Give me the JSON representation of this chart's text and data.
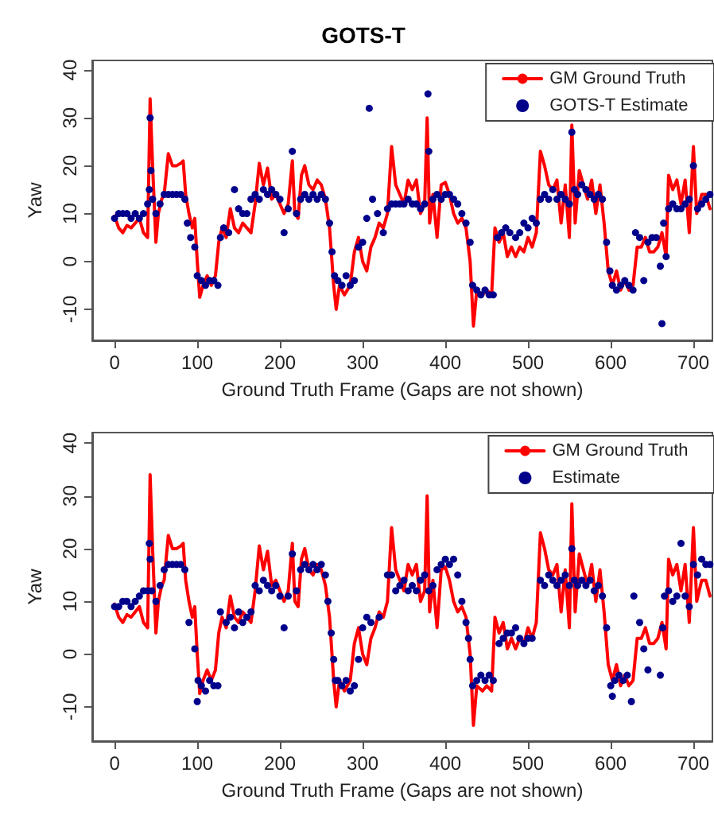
{
  "chart_data": [
    {
      "type": "line",
      "title": "GOTS-T",
      "xlabel": "Ground Truth Frame (Gaps are not shown)",
      "ylabel": "Yaw",
      "xlim": [
        -27,
        723
      ],
      "ylim": [
        -16.5,
        42
      ],
      "xticks": [
        0,
        100,
        200,
        300,
        400,
        500,
        600,
        700
      ],
      "yticks": [
        -10,
        0,
        10,
        20,
        30,
        40
      ],
      "grid": false,
      "legend": "top right",
      "series": [
        {
          "name": "GM Ground Truth",
          "color": "#ff0000",
          "type": "line",
          "marker": "none",
          "line_style": "solid",
          "x": [
            0,
            5,
            10,
            15,
            20,
            25,
            30,
            35,
            40,
            43,
            46,
            50,
            53,
            57,
            60,
            65,
            70,
            75,
            80,
            83,
            86,
            90,
            94,
            97,
            100,
            103,
            107,
            112,
            117,
            122,
            126,
            130,
            135,
            140,
            145,
            150,
            155,
            160,
            165,
            170,
            175,
            180,
            185,
            190,
            195,
            200,
            205,
            210,
            215,
            218,
            222,
            226,
            230,
            235,
            240,
            245,
            250,
            255,
            260,
            265,
            268,
            272,
            278,
            285,
            290,
            295,
            300,
            305,
            310,
            315,
            320,
            325,
            330,
            335,
            340,
            345,
            350,
            355,
            360,
            365,
            370,
            375,
            378,
            381,
            385,
            390,
            395,
            400,
            405,
            410,
            415,
            420,
            425,
            430,
            434,
            438,
            445,
            450,
            456,
            460,
            465,
            470,
            475,
            480,
            485,
            490,
            495,
            500,
            505,
            510,
            515,
            520,
            525,
            530,
            535,
            540,
            545,
            550,
            553,
            557,
            562,
            567,
            572,
            577,
            582,
            587,
            592,
            597,
            602,
            607,
            612,
            617,
            622,
            627,
            632,
            637,
            642,
            647,
            652,
            657,
            662,
            667,
            670,
            675,
            680,
            685,
            690,
            695,
            700,
            704,
            710,
            715,
            720
          ],
          "values": [
            9.5,
            7,
            6,
            7.5,
            7,
            8,
            9,
            6,
            5,
            34,
            20,
            4,
            10,
            13,
            14,
            22.5,
            20,
            20,
            20.5,
            21,
            14,
            10,
            7,
            9,
            0,
            -7.5,
            -5,
            -3,
            -5,
            -3,
            4,
            7,
            5,
            11,
            7,
            6,
            8,
            7,
            6,
            12,
            20.5,
            16,
            19.5,
            13,
            14,
            12,
            10,
            12,
            21,
            10,
            9,
            18,
            20,
            16,
            15,
            17,
            16,
            13,
            7,
            -5,
            -10,
            -5,
            -7,
            -5,
            2,
            5,
            0,
            -2,
            3,
            5,
            8,
            7,
            10,
            24,
            16,
            14,
            12,
            17,
            15,
            17,
            10,
            12,
            30,
            8,
            14,
            5,
            16,
            16.5,
            14,
            10,
            8,
            9,
            7,
            0,
            -13.5,
            -6,
            -7,
            -6,
            -7,
            7,
            4,
            6,
            1,
            3,
            1,
            3,
            2,
            5,
            3,
            6,
            23,
            20,
            16,
            15,
            17,
            8,
            16,
            5,
            28.5,
            8,
            19,
            16,
            13,
            17,
            10,
            16,
            8,
            -2,
            -5,
            -2,
            -6,
            -4,
            -6,
            -5,
            3,
            3,
            5,
            2,
            2,
            3,
            6,
            1,
            18,
            15,
            17,
            12,
            17,
            6,
            24,
            10,
            14,
            14,
            11
          ]
        },
        {
          "name": "GOTS-T Estimate",
          "color": "#00008b",
          "type": "scatter",
          "marker": "circle",
          "x": [
            0,
            5,
            10,
            15,
            20,
            25,
            30,
            35,
            40,
            42,
            43,
            44,
            46,
            50,
            55,
            60,
            65,
            70,
            75,
            80,
            85,
            88,
            92,
            97,
            100,
            105,
            110,
            115,
            120,
            125,
            128,
            132,
            138,
            145,
            150,
            155,
            160,
            165,
            170,
            175,
            180,
            185,
            190,
            195,
            200,
            205,
            210,
            215,
            220,
            225,
            230,
            235,
            240,
            245,
            250,
            255,
            260,
            263,
            266,
            270,
            275,
            280,
            285,
            290,
            295,
            300,
            305,
            308,
            312,
            318,
            325,
            330,
            335,
            340,
            345,
            350,
            355,
            360,
            365,
            370,
            375,
            379,
            380,
            385,
            390,
            395,
            400,
            405,
            410,
            415,
            420,
            425,
            430,
            433,
            438,
            443,
            448,
            453,
            458,
            463,
            468,
            473,
            478,
            485,
            490,
            495,
            500,
            505,
            510,
            515,
            520,
            525,
            530,
            535,
            540,
            545,
            550,
            553,
            556,
            560,
            565,
            570,
            575,
            580,
            585,
            590,
            595,
            599,
            602,
            607,
            612,
            617,
            622,
            627,
            630,
            635,
            640,
            645,
            650,
            655,
            660,
            662,
            664,
            667,
            670,
            675,
            680,
            685,
            690,
            695,
            700,
            705,
            710,
            715,
            720
          ],
          "values": [
            9,
            10,
            10,
            10,
            9,
            10,
            9,
            10,
            12,
            15,
            30,
            19,
            13,
            10,
            12,
            14,
            14,
            14,
            14,
            14,
            13,
            8,
            5,
            3,
            -3,
            -4,
            -5,
            -4,
            -4,
            -5,
            5,
            7,
            6,
            15,
            11,
            10,
            10,
            13,
            14,
            13,
            15,
            14,
            15,
            14,
            13,
            6,
            11,
            23,
            10,
            13,
            14,
            13,
            14,
            13,
            14,
            13,
            8,
            2,
            -3,
            -4,
            -5,
            -3,
            -5,
            -4,
            3,
            4,
            9,
            32,
            13,
            10,
            6,
            11,
            12,
            12,
            12,
            12,
            13,
            12,
            12,
            11,
            12,
            35,
            23,
            13,
            14,
            13,
            14,
            14,
            13,
            12,
            10,
            8,
            4,
            -5,
            -6,
            -7,
            -6,
            -7,
            -7,
            5,
            6,
            7,
            6,
            5,
            6,
            8,
            7,
            9,
            8,
            13,
            14,
            13,
            15,
            13,
            14,
            13,
            12,
            27,
            15,
            14,
            16,
            15,
            14,
            13,
            14,
            13,
            4,
            -2,
            -5,
            -6,
            -5,
            -4,
            -5,
            -6,
            6,
            5,
            -4,
            4,
            5,
            5,
            -1,
            -13,
            8,
            1,
            11,
            12,
            11,
            11,
            12,
            13,
            20,
            11,
            12,
            13,
            14
          ]
        }
      ]
    },
    {
      "type": "line",
      "xlabel": "Ground Truth Frame (Gaps are not shown)",
      "ylabel": "Yaw",
      "xlim": [
        -27,
        723
      ],
      "ylim": [
        -16.5,
        42
      ],
      "xticks": [
        0,
        100,
        200,
        300,
        400,
        500,
        600,
        700
      ],
      "yticks": [
        -10,
        0,
        10,
        20,
        30,
        40
      ],
      "grid": false,
      "legend": "top right",
      "series": [
        {
          "name": "GM Ground Truth",
          "color": "#ff0000",
          "type": "line",
          "marker": "none",
          "line_style": "solid",
          "x": [
            0,
            5,
            10,
            15,
            20,
            25,
            30,
            35,
            40,
            43,
            46,
            50,
            53,
            57,
            60,
            65,
            70,
            75,
            80,
            83,
            86,
            90,
            94,
            97,
            100,
            103,
            107,
            112,
            117,
            122,
            126,
            130,
            135,
            140,
            145,
            150,
            155,
            160,
            165,
            170,
            175,
            180,
            185,
            190,
            195,
            200,
            205,
            210,
            215,
            218,
            222,
            226,
            230,
            235,
            240,
            245,
            250,
            255,
            260,
            265,
            268,
            272,
            278,
            285,
            290,
            295,
            300,
            305,
            310,
            315,
            320,
            325,
            330,
            335,
            340,
            345,
            350,
            355,
            360,
            365,
            370,
            375,
            378,
            381,
            385,
            390,
            395,
            400,
            405,
            410,
            415,
            420,
            425,
            430,
            434,
            438,
            445,
            450,
            456,
            460,
            465,
            470,
            475,
            480,
            485,
            490,
            495,
            500,
            505,
            510,
            515,
            520,
            525,
            530,
            535,
            540,
            545,
            550,
            553,
            557,
            562,
            567,
            572,
            577,
            582,
            587,
            592,
            597,
            602,
            607,
            612,
            617,
            622,
            627,
            632,
            637,
            642,
            647,
            652,
            657,
            662,
            667,
            670,
            675,
            680,
            685,
            690,
            695,
            700,
            704,
            710,
            715,
            720
          ],
          "values": [
            9.5,
            7,
            6,
            7.5,
            7,
            8,
            9,
            6,
            5,
            34,
            20,
            4,
            10,
            13,
            14,
            22.5,
            20,
            20,
            20.5,
            21,
            14,
            10,
            7,
            9,
            0,
            -7.5,
            -5,
            -3,
            -5,
            -3,
            4,
            7,
            5,
            11,
            7,
            6,
            8,
            7,
            6,
            12,
            20.5,
            16,
            19.5,
            13,
            14,
            12,
            10,
            12,
            21,
            10,
            9,
            18,
            20,
            16,
            15,
            17,
            16,
            13,
            7,
            -5,
            -10,
            -5,
            -7,
            -5,
            2,
            5,
            0,
            -2,
            3,
            5,
            8,
            7,
            10,
            24,
            16,
            14,
            12,
            17,
            15,
            17,
            10,
            12,
            30,
            8,
            14,
            5,
            16,
            16.5,
            14,
            10,
            8,
            9,
            7,
            0,
            -13.5,
            -6,
            -7,
            -6,
            -7,
            7,
            4,
            6,
            1,
            3,
            1,
            3,
            2,
            5,
            3,
            6,
            23,
            20,
            16,
            15,
            17,
            8,
            16,
            5,
            28.5,
            8,
            19,
            16,
            13,
            17,
            10,
            16,
            8,
            -2,
            -5,
            -2,
            -6,
            -4,
            -6,
            -5,
            3,
            3,
            5,
            2,
            2,
            3,
            6,
            1,
            18,
            15,
            17,
            12,
            17,
            6,
            24,
            10,
            14,
            14,
            11
          ]
        },
        {
          "name": "Estimate",
          "color": "#00008b",
          "type": "scatter",
          "marker": "circle",
          "x": [
            0,
            5,
            10,
            15,
            20,
            25,
            30,
            35,
            40,
            42,
            43,
            45,
            50,
            55,
            60,
            65,
            70,
            75,
            80,
            85,
            90,
            97,
            100,
            101,
            105,
            110,
            115,
            120,
            125,
            128,
            135,
            140,
            145,
            150,
            155,
            160,
            165,
            170,
            175,
            180,
            185,
            190,
            195,
            200,
            205,
            210,
            215,
            220,
            225,
            230,
            235,
            240,
            245,
            250,
            255,
            258,
            262,
            265,
            267,
            270,
            275,
            280,
            285,
            290,
            295,
            300,
            305,
            310,
            320,
            330,
            335,
            340,
            345,
            350,
            355,
            360,
            365,
            370,
            375,
            380,
            385,
            390,
            395,
            400,
            405,
            410,
            415,
            420,
            425,
            428,
            430,
            433,
            438,
            443,
            448,
            453,
            458,
            465,
            470,
            475,
            480,
            485,
            490,
            495,
            500,
            505,
            515,
            520,
            525,
            530,
            535,
            540,
            545,
            550,
            553,
            556,
            560,
            565,
            570,
            575,
            580,
            585,
            590,
            595,
            600,
            602,
            605,
            610,
            615,
            620,
            625,
            628,
            635,
            640,
            645,
            660,
            663,
            665,
            670,
            675,
            680,
            685,
            690,
            695,
            700,
            705,
            710,
            715,
            720
          ],
          "values": [
            9,
            9,
            10,
            10,
            9,
            10,
            11,
            12,
            12,
            21,
            18,
            12,
            10,
            13,
            16,
            17,
            17,
            17,
            17,
            16,
            6,
            1,
            -9,
            -5,
            -6,
            -7,
            -5,
            -6,
            -6,
            8,
            6,
            7,
            5,
            8,
            6,
            7,
            8,
            13,
            12,
            14,
            13,
            12,
            13,
            11,
            5,
            11,
            19,
            12,
            16,
            17,
            16,
            17,
            16,
            17,
            15,
            10,
            4,
            -1,
            -5,
            -5,
            -6,
            -5,
            -7,
            -6,
            -1,
            5,
            7,
            6,
            7,
            15,
            15,
            12,
            13,
            14,
            12,
            13,
            12,
            14,
            15,
            12,
            13,
            16,
            17,
            18,
            17,
            18,
            15,
            10,
            6,
            3,
            -1,
            -6,
            -5,
            -4,
            -5,
            -4,
            -5,
            2,
            3,
            4,
            4,
            5,
            3,
            2,
            3,
            3,
            14,
            13,
            15,
            14,
            13,
            14,
            15,
            13,
            20,
            14,
            13,
            14,
            13,
            14,
            12,
            13,
            11,
            5,
            -6,
            -8,
            -5,
            -4,
            -5,
            -4,
            -9,
            11,
            6,
            1,
            -3,
            -4,
            5,
            11,
            12,
            10,
            11,
            21,
            11,
            9,
            17,
            15,
            18,
            17,
            17
          ]
        }
      ]
    }
  ]
}
